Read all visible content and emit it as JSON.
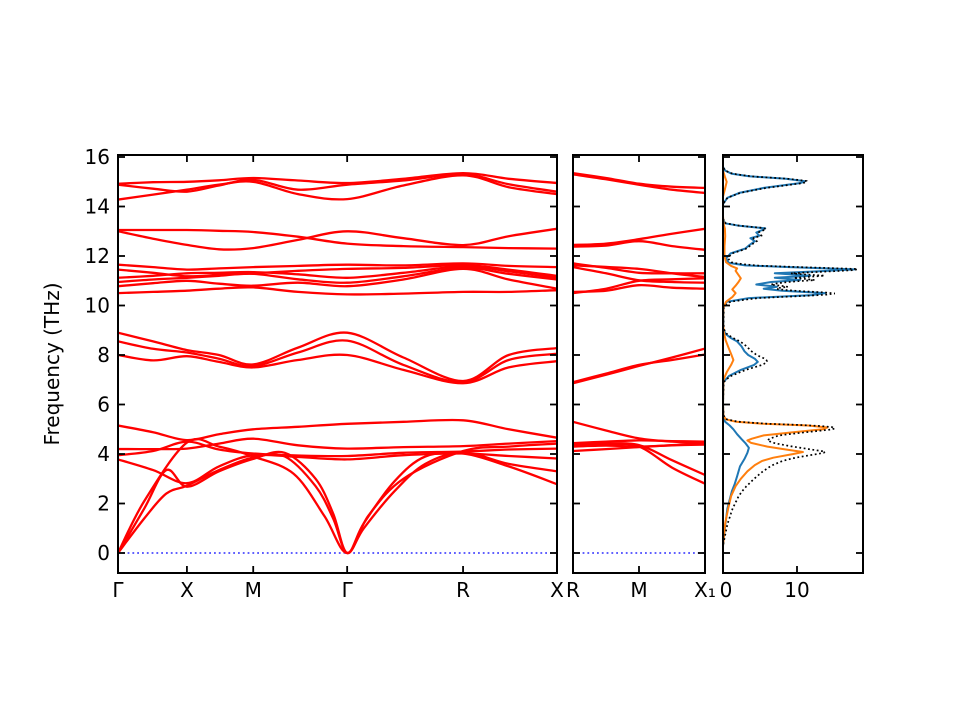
{
  "figure": {
    "background": "#ffffff",
    "frame_color": "#000000",
    "band_color": "#ff0000",
    "zero_line_color": "#0000ff",
    "text_color": "#000000"
  },
  "chart_data": [
    {
      "type": "line",
      "name": "phonon-band-structure-main",
      "title": "",
      "ylabel": "Frequency (THz)",
      "ylim": [
        -0.8,
        16.1
      ],
      "yticks": [
        0,
        2,
        4,
        6,
        8,
        10,
        12,
        14,
        16
      ],
      "xticklabels": [
        "Γ",
        "X",
        "M",
        "Γ",
        "R",
        "X"
      ],
      "xtick_positions": [
        0,
        0.157,
        0.308,
        0.522,
        0.786,
        1
      ],
      "line_color": "#ff0000",
      "zero_line": 0,
      "zero_line_color": "#0000ff",
      "grid": false,
      "x_default": [
        0,
        0.08,
        0.157,
        0.23,
        0.308,
        0.41,
        0.522,
        0.65,
        0.786,
        0.89,
        1
      ],
      "bands": [
        {
          "x": [
            0,
            0.06,
            0.11,
            0.157,
            0.23,
            0.308,
            0.38,
            0.45,
            0.49,
            0.522,
            0.56,
            0.63,
            0.7,
            0.786,
            0.89,
            1
          ],
          "f": [
            0,
            1.8,
            3.35,
            2.68,
            3.3,
            3.8,
            4.05,
            3.0,
            1.6,
            0,
            1.2,
            2.9,
            3.9,
            4.02,
            3.5,
            2.78
          ]
        },
        {
          "x": [
            0,
            0.06,
            0.11,
            0.157,
            0.23,
            0.308,
            0.38,
            0.45,
            0.49,
            0.522,
            0.56,
            0.63,
            0.7,
            0.786,
            0.89,
            1
          ],
          "f": [
            0,
            1.4,
            2.4,
            2.72,
            3.35,
            3.86,
            3.9,
            2.7,
            1.4,
            0,
            1.0,
            2.5,
            3.6,
            4.06,
            3.6,
            3.3
          ]
        },
        {
          "x": [
            0,
            0.06,
            0.157,
            0.23,
            0.308,
            0.4,
            0.47,
            0.522,
            0.57,
            0.65,
            0.786,
            0.89,
            1
          ],
          "f": [
            0,
            2.1,
            4.46,
            4.3,
            3.9,
            3.2,
            1.5,
            0,
            1.5,
            3.0,
            4.12,
            4.3,
            4.42
          ]
        },
        {
          "f": [
            3.78,
            3.35,
            2.82,
            3.5,
            3.95,
            3.88,
            3.78,
            3.95,
            4.02,
            3.92,
            3.82
          ]
        },
        {
          "f": [
            3.95,
            4.12,
            4.5,
            4.18,
            4.02,
            3.94,
            3.92,
            4.05,
            4.1,
            4.18,
            4.22
          ]
        },
        {
          "f": [
            4.2,
            4.2,
            4.22,
            4.42,
            4.62,
            4.35,
            4.22,
            4.28,
            4.32,
            4.42,
            4.52
          ]
        },
        {
          "f": [
            5.15,
            4.88,
            4.56,
            4.8,
            5.0,
            5.1,
            5.22,
            5.3,
            5.36,
            5.0,
            4.66
          ]
        },
        {
          "f": [
            8.0,
            7.78,
            7.95,
            7.72,
            7.5,
            7.8,
            8.0,
            7.4,
            6.86,
            7.5,
            7.75
          ]
        },
        {
          "f": [
            8.55,
            8.25,
            8.1,
            7.85,
            7.55,
            8.1,
            8.58,
            7.6,
            6.9,
            7.8,
            8.05
          ]
        },
        {
          "f": [
            8.9,
            8.55,
            8.2,
            8.0,
            7.62,
            8.3,
            8.9,
            7.9,
            6.95,
            8.0,
            8.28
          ]
        },
        {
          "f": [
            10.5,
            10.55,
            10.6,
            10.68,
            10.73,
            10.55,
            10.45,
            10.48,
            10.55,
            10.55,
            10.62
          ]
        },
        {
          "f": [
            10.78,
            10.9,
            11.0,
            10.88,
            10.8,
            10.92,
            10.78,
            11.05,
            11.48,
            11.05,
            10.68
          ]
        },
        {
          "f": [
            10.95,
            11.05,
            11.12,
            11.2,
            11.28,
            11.06,
            10.92,
            11.18,
            11.52,
            11.28,
            11.05
          ]
        },
        {
          "f": [
            11.12,
            11.2,
            11.3,
            11.32,
            11.35,
            11.26,
            11.12,
            11.32,
            11.58,
            11.38,
            11.12
          ]
        },
        {
          "f": [
            11.45,
            11.32,
            11.18,
            11.24,
            11.3,
            11.4,
            11.48,
            11.52,
            11.63,
            11.45,
            11.2
          ]
        },
        {
          "f": [
            11.65,
            11.55,
            11.45,
            11.5,
            11.55,
            11.6,
            11.65,
            11.62,
            11.7,
            11.6,
            11.55
          ]
        },
        {
          "f": [
            13.05,
            13.05,
            13.05,
            13.02,
            12.97,
            12.78,
            12.5,
            12.4,
            12.36,
            12.32,
            12.3
          ]
        },
        {
          "f": [
            13.0,
            12.7,
            12.45,
            12.27,
            12.32,
            12.65,
            13.0,
            12.72,
            12.44,
            12.8,
            13.1
          ]
        },
        {
          "f": [
            14.92,
            14.98,
            15.0,
            15.06,
            15.15,
            15.05,
            14.95,
            15.12,
            15.35,
            15.12,
            14.95
          ]
        },
        {
          "f": [
            14.88,
            14.72,
            14.6,
            14.85,
            15.08,
            14.68,
            14.88,
            15.05,
            15.3,
            14.9,
            14.6
          ]
        },
        {
          "f": [
            14.28,
            14.48,
            14.68,
            14.88,
            15.0,
            14.5,
            14.3,
            14.85,
            15.26,
            14.78,
            14.5
          ]
        }
      ]
    },
    {
      "type": "line",
      "name": "phonon-band-structure-RMX1",
      "xticklabels": [
        "R",
        "M",
        "X₁"
      ],
      "xtick_positions": [
        0,
        0.5,
        1
      ],
      "line_color": "#ff0000",
      "zero_line": 0,
      "zero_line_color": "#0000ff",
      "grid": false,
      "x_default": [
        0,
        0.25,
        0.5,
        0.75,
        1
      ],
      "bands": [
        {
          "f": [
            15.35,
            15.15,
            14.92,
            14.8,
            14.75
          ]
        },
        {
          "f": [
            15.3,
            15.1,
            14.88,
            14.68,
            14.55
          ]
        },
        {
          "f": [
            12.45,
            12.5,
            12.68,
            12.9,
            13.1
          ]
        },
        {
          "f": [
            12.38,
            12.42,
            12.6,
            12.4,
            12.25
          ]
        },
        {
          "f": [
            11.7,
            11.52,
            11.32,
            11.3,
            11.3
          ]
        },
        {
          "f": [
            11.62,
            11.56,
            11.48,
            11.3,
            11.15
          ]
        },
        {
          "f": [
            11.55,
            11.3,
            11.02,
            10.95,
            10.92
          ]
        },
        {
          "f": [
            10.5,
            10.68,
            11.0,
            11.06,
            11.1
          ]
        },
        {
          "f": [
            10.55,
            10.6,
            10.82,
            10.72,
            10.68
          ]
        },
        {
          "f": [
            6.86,
            7.2,
            7.56,
            7.9,
            8.26
          ]
        },
        {
          "f": [
            6.9,
            7.25,
            7.6,
            7.8,
            8.02
          ]
        },
        {
          "f": [
            5.3,
            4.95,
            4.63,
            4.5,
            4.45
          ]
        },
        {
          "f": [
            4.4,
            4.43,
            4.36,
            3.75,
            3.15
          ]
        },
        {
          "f": [
            4.36,
            4.4,
            4.3,
            3.45,
            2.8
          ]
        },
        {
          "f": [
            4.3,
            4.34,
            4.3,
            4.35,
            4.38
          ]
        },
        {
          "f": [
            4.12,
            4.2,
            4.28,
            4.36,
            4.42
          ]
        },
        {
          "f": [
            4.44,
            4.5,
            4.55,
            4.52,
            4.5
          ]
        }
      ]
    },
    {
      "type": "line",
      "name": "phonon-dos",
      "orientation": "horizontal-frequency-vertical",
      "xlim": [
        0,
        19
      ],
      "xticks": [
        0,
        10
      ],
      "xticklabels": [
        "0",
        "10"
      ],
      "legend": "none",
      "series": [
        {
          "name": "partial-dos-blue",
          "color": "#1f77b4",
          "points": [
            [
              0.3,
              0
            ],
            [
              1,
              0.25
            ],
            [
              1.8,
              0.6
            ],
            [
              2.5,
              1.2
            ],
            [
              2.8,
              1.6
            ],
            [
              3.1,
              1.9
            ],
            [
              3.5,
              2.3
            ],
            [
              3.8,
              2.9
            ],
            [
              4.05,
              3.3
            ],
            [
              4.25,
              3.5
            ],
            [
              4.45,
              3.0
            ],
            [
              4.6,
              2.5
            ],
            [
              4.8,
              1.9
            ],
            [
              5.0,
              1.4
            ],
            [
              5.15,
              0.9
            ],
            [
              5.3,
              0.3
            ],
            [
              5.45,
              0.05
            ],
            [
              6.0,
              0
            ],
            [
              6.9,
              0.05
            ],
            [
              7.15,
              0.8
            ],
            [
              7.4,
              2.4
            ],
            [
              7.6,
              4.2
            ],
            [
              7.72,
              4.7
            ],
            [
              7.85,
              4.3
            ],
            [
              8.0,
              3.4
            ],
            [
              8.15,
              2.9
            ],
            [
              8.35,
              2.5
            ],
            [
              8.55,
              1.9
            ],
            [
              8.7,
              1.0
            ],
            [
              8.85,
              0.35
            ],
            [
              9.05,
              0.05
            ],
            [
              9.9,
              0.05
            ],
            [
              10.15,
              0.5
            ],
            [
              10.3,
              3.5
            ],
            [
              10.42,
              12.0
            ],
            [
              10.5,
              13.8
            ],
            [
              10.6,
              8.0
            ],
            [
              10.68,
              5.5
            ],
            [
              10.76,
              7.3
            ],
            [
              10.85,
              4.5
            ],
            [
              10.95,
              6.5
            ],
            [
              11.03,
              10.4
            ],
            [
              11.12,
              7.0
            ],
            [
              11.2,
              11.8
            ],
            [
              11.3,
              7.0
            ],
            [
              11.38,
              13.0
            ],
            [
              11.46,
              17.8
            ],
            [
              11.55,
              9.0
            ],
            [
              11.62,
              3.0
            ],
            [
              11.72,
              0.8
            ],
            [
              11.9,
              0.4
            ],
            [
              12.1,
              1.0
            ],
            [
              12.3,
              3.0
            ],
            [
              12.45,
              3.6
            ],
            [
              12.6,
              4.3
            ],
            [
              12.72,
              3.7
            ],
            [
              12.82,
              4.9
            ],
            [
              12.95,
              4.5
            ],
            [
              13.05,
              5.3
            ],
            [
              13.12,
              5.7
            ],
            [
              13.22,
              2.2
            ],
            [
              13.32,
              0.3
            ],
            [
              13.5,
              0
            ],
            [
              14.1,
              0
            ],
            [
              14.35,
              0.6
            ],
            [
              14.55,
              2.2
            ],
            [
              14.75,
              5.5
            ],
            [
              14.95,
              10.5
            ],
            [
              15.02,
              11.1
            ],
            [
              15.12,
              8.5
            ],
            [
              15.22,
              3.5
            ],
            [
              15.32,
              1.2
            ],
            [
              15.45,
              0.3
            ],
            [
              15.6,
              0
            ]
          ]
        },
        {
          "name": "partial-dos-orange",
          "color": "#ff7f0e",
          "points": [
            [
              0.3,
              0
            ],
            [
              1.2,
              0.3
            ],
            [
              1.8,
              0.7
            ],
            [
              2.3,
              1.1
            ],
            [
              2.7,
              1.7
            ],
            [
              3.0,
              2.4
            ],
            [
              3.3,
              3.3
            ],
            [
              3.55,
              4.3
            ],
            [
              3.72,
              5.3
            ],
            [
              3.85,
              6.8
            ],
            [
              4.0,
              9.5
            ],
            [
              4.08,
              10.8
            ],
            [
              4.18,
              8.5
            ],
            [
              4.3,
              6.0
            ],
            [
              4.45,
              3.8
            ],
            [
              4.55,
              3.3
            ],
            [
              4.62,
              3.9
            ],
            [
              4.75,
              5.5
            ],
            [
              4.88,
              9.5
            ],
            [
              5.0,
              13.5
            ],
            [
              5.07,
              14.1
            ],
            [
              5.15,
              11.5
            ],
            [
              5.22,
              5.5
            ],
            [
              5.3,
              1.8
            ],
            [
              5.4,
              0.4
            ],
            [
              5.55,
              0.05
            ],
            [
              6.0,
              0
            ],
            [
              7.0,
              0.05
            ],
            [
              7.3,
              0.5
            ],
            [
              7.6,
              1.1
            ],
            [
              7.8,
              1.4
            ],
            [
              8.0,
              1.15
            ],
            [
              8.3,
              0.75
            ],
            [
              8.6,
              0.35
            ],
            [
              8.9,
              0.12
            ],
            [
              9.3,
              0.02
            ],
            [
              9.9,
              0.05
            ],
            [
              10.15,
              0.4
            ],
            [
              10.35,
              1.3
            ],
            [
              10.5,
              1.7
            ],
            [
              10.65,
              1.25
            ],
            [
              10.8,
              1.7
            ],
            [
              10.95,
              2.1
            ],
            [
              11.1,
              2.4
            ],
            [
              11.25,
              2.05
            ],
            [
              11.4,
              1.7
            ],
            [
              11.5,
              1.9
            ],
            [
              11.6,
              1.1
            ],
            [
              11.75,
              0.4
            ],
            [
              12.0,
              0.2
            ],
            [
              12.4,
              0.2
            ],
            [
              12.8,
              0.3
            ],
            [
              13.1,
              0.25
            ],
            [
              13.3,
              0.08
            ],
            [
              13.6,
              0
            ],
            [
              14.4,
              0
            ],
            [
              14.7,
              0.25
            ],
            [
              15.0,
              0.5
            ],
            [
              15.2,
              0.25
            ],
            [
              15.45,
              0
            ]
          ]
        },
        {
          "name": "total-dos-dotted",
          "color": "#000000",
          "style": "dotted",
          "derived": "sum-of-series"
        }
      ]
    }
  ]
}
